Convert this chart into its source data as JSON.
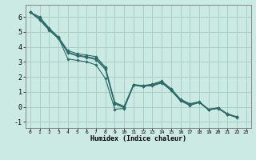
{
  "xlabel": "Humidex (Indice chaleur)",
  "ylabel": "",
  "xlim": [
    -0.5,
    23.5
  ],
  "ylim": [
    -1.4,
    6.8
  ],
  "xticks": [
    0,
    1,
    2,
    3,
    4,
    5,
    6,
    7,
    8,
    9,
    10,
    11,
    12,
    13,
    14,
    15,
    16,
    17,
    18,
    19,
    20,
    21,
    22,
    23
  ],
  "yticks": [
    -1,
    0,
    1,
    2,
    3,
    4,
    5,
    6
  ],
  "background_color": "#cceae4",
  "grid_color": "#aacfc8",
  "line_color": "#2a6b65",
  "series": [
    [
      6.3,
      5.9,
      5.2,
      4.6,
      3.2,
      3.1,
      3.0,
      2.8,
      1.9,
      -0.15,
      -0.1,
      1.45,
      1.4,
      1.4,
      1.6,
      1.1,
      0.4,
      0.1,
      0.3,
      -0.2,
      -0.1,
      -0.5,
      -0.7
    ],
    [
      6.3,
      6.0,
      5.25,
      4.65,
      3.75,
      3.55,
      3.45,
      3.35,
      2.65,
      0.3,
      0.05,
      1.5,
      1.42,
      1.52,
      1.72,
      1.22,
      0.52,
      0.22,
      0.35,
      -0.15,
      -0.05,
      -0.45,
      -0.65
    ],
    [
      6.3,
      5.8,
      5.1,
      4.55,
      3.6,
      3.4,
      3.3,
      3.15,
      2.5,
      0.2,
      -0.05,
      1.45,
      1.35,
      1.45,
      1.65,
      1.15,
      0.45,
      0.15,
      0.3,
      -0.18,
      -0.08,
      -0.48,
      -0.68
    ],
    [
      6.3,
      5.85,
      5.18,
      4.6,
      3.65,
      3.45,
      3.35,
      3.22,
      2.58,
      0.25,
      0.0,
      1.47,
      1.38,
      1.47,
      1.67,
      1.17,
      0.47,
      0.17,
      0.32,
      -0.17,
      -0.07,
      -0.47,
      -0.67
    ]
  ],
  "x_start": 0,
  "marker": "D",
  "markersize": 1.8,
  "linewidth": 0.8,
  "xlabel_fontsize": 6.0,
  "xtick_fontsize": 4.5,
  "ytick_fontsize": 6.0
}
